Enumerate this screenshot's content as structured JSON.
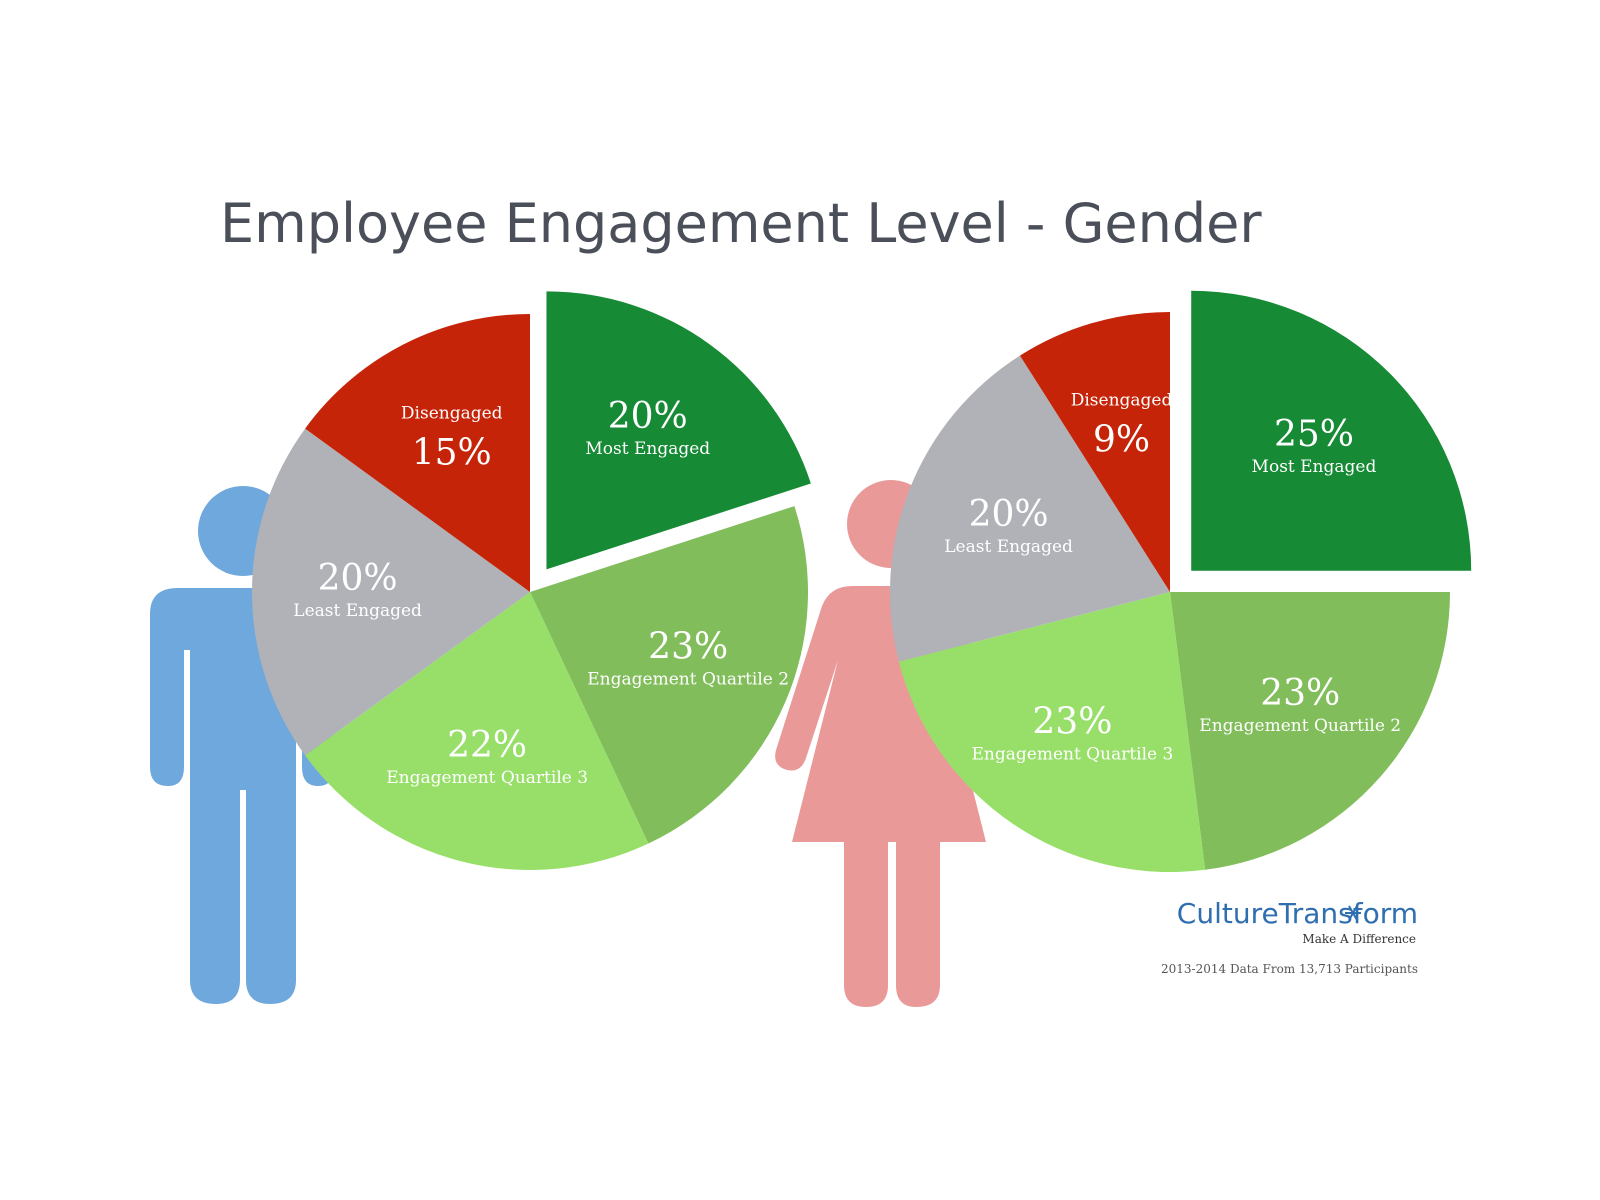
{
  "title": "Employee Engagement Level - Gender",
  "colors": {
    "most_engaged": "#168a34",
    "quartile_2": "#82bd5c",
    "quartile_3": "#98df6a",
    "least_engaged": "#b0b2b8",
    "disengaged": "#c62409",
    "male_figure": "#6fa8dc",
    "female_figure": "#ea9999"
  },
  "icons": {
    "male": "male-figure-icon",
    "female": "female-figure-icon",
    "logo": "snowflake-icon"
  },
  "chart_data": [
    {
      "type": "pie",
      "group": "male",
      "slices": [
        {
          "label": "Most Engaged",
          "value": 20,
          "value_label": "20%",
          "color": "#168a34",
          "exploded": true
        },
        {
          "label": "Engagement Quartile 2",
          "value": 23,
          "value_label": "23%",
          "color": "#82bd5c",
          "exploded": false
        },
        {
          "label": "Engagement Quartile 3",
          "value": 22,
          "value_label": "22%",
          "color": "#98df6a",
          "exploded": false
        },
        {
          "label": "Least Engaged",
          "value": 20,
          "value_label": "20%",
          "color": "#b0b2b8",
          "exploded": false
        },
        {
          "label": "Disengaged",
          "value": 15,
          "value_label": "15%",
          "color": "#c62409",
          "exploded": false
        }
      ]
    },
    {
      "type": "pie",
      "group": "female",
      "slices": [
        {
          "label": "Most Engaged",
          "value": 25,
          "value_label": "25%",
          "color": "#168a34",
          "exploded": true
        },
        {
          "label": "Engagement Quartile 2",
          "value": 23,
          "value_label": "23%",
          "color": "#82bd5c",
          "exploded": false
        },
        {
          "label": "Engagement Quartile 3",
          "value": 23,
          "value_label": "23%",
          "color": "#98df6a",
          "exploded": false
        },
        {
          "label": "Least Engaged",
          "value": 20,
          "value_label": "20%",
          "color": "#b0b2b8",
          "exploded": false
        },
        {
          "label": "Disengaged",
          "value": 9,
          "value_label": "9%",
          "color": "#c62409",
          "exploded": false
        }
      ]
    }
  ],
  "brand": {
    "name": "CultureTransform",
    "tagline": "Make A Difference"
  },
  "footnote": "2013-2014 Data From 13,713 Participants"
}
